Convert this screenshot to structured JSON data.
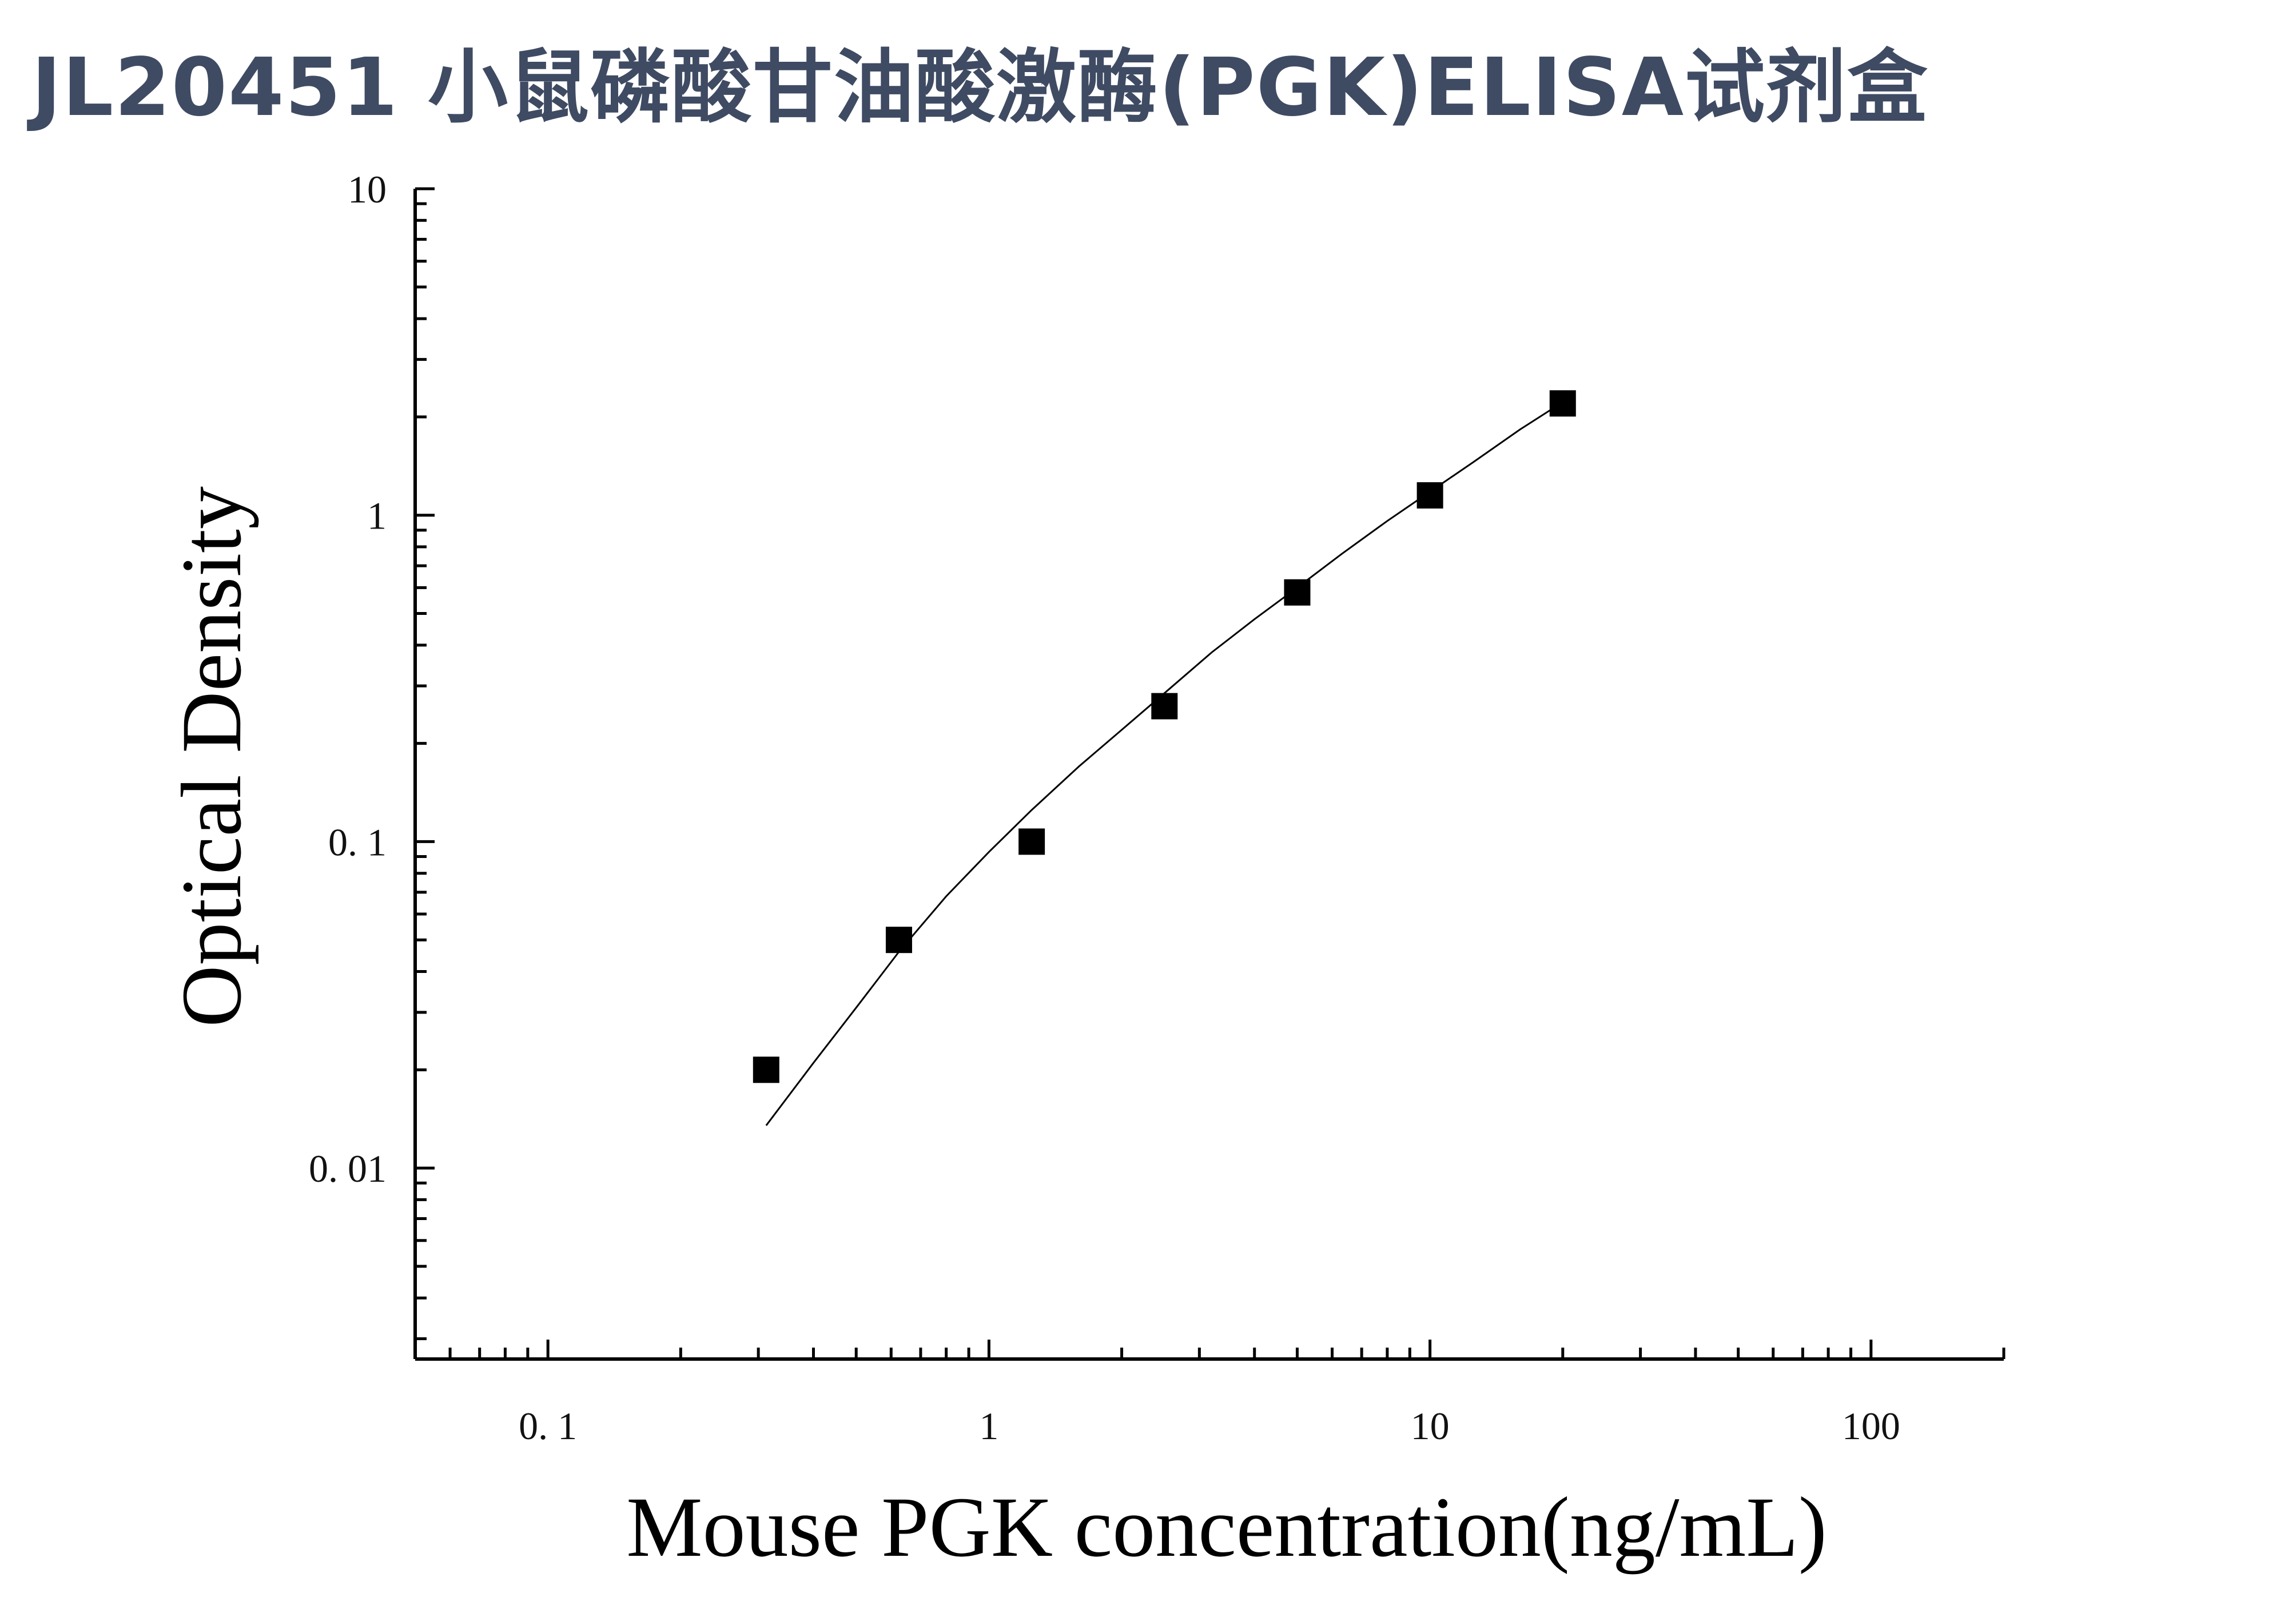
{
  "title": "JL20451 小鼠磷酸甘油酸激酶(PGK)ELISA试剂盒",
  "chart_data": {
    "type": "scatter",
    "title": "JL20451 小鼠磷酸甘油酸激酶(PGK)ELISA试剂盒",
    "xlabel": "Mouse PGK concentration(ng/mL)",
    "ylabel": "Optical Density",
    "x_scale": "log",
    "y_scale": "log",
    "xlim": [
      0.05,
      200
    ],
    "ylim": [
      0.0026,
      10
    ],
    "x_ticks": [
      0.1,
      1,
      10,
      100
    ],
    "x_tick_labels": [
      "0. 1",
      "1",
      "10",
      "100"
    ],
    "y_ticks": [
      0.01,
      0.1,
      1,
      10
    ],
    "y_tick_labels": [
      "0. 01",
      "0. 1",
      "1",
      "10"
    ],
    "grid": false,
    "series": [
      {
        "marker": "square",
        "color": "#000000",
        "x": [
          0.3125,
          0.625,
          1.25,
          2.5,
          5,
          10,
          20
        ],
        "y": [
          0.02,
          0.05,
          0.1,
          0.26,
          0.58,
          1.15,
          2.2
        ]
      }
    ],
    "fit_curve": {
      "color": "#000000",
      "x": [
        0.3125,
        0.4,
        0.5,
        0.625,
        0.8,
        1.0,
        1.25,
        1.6,
        2.0,
        2.5,
        3.2,
        4.0,
        5.0,
        6.3,
        8.0,
        10.0,
        12.5,
        16.0,
        20.0
      ],
      "y": [
        0.0135,
        0.021,
        0.031,
        0.046,
        0.068,
        0.093,
        0.125,
        0.17,
        0.22,
        0.285,
        0.38,
        0.48,
        0.6,
        0.76,
        0.96,
        1.18,
        1.45,
        1.83,
        2.22
      ]
    }
  }
}
